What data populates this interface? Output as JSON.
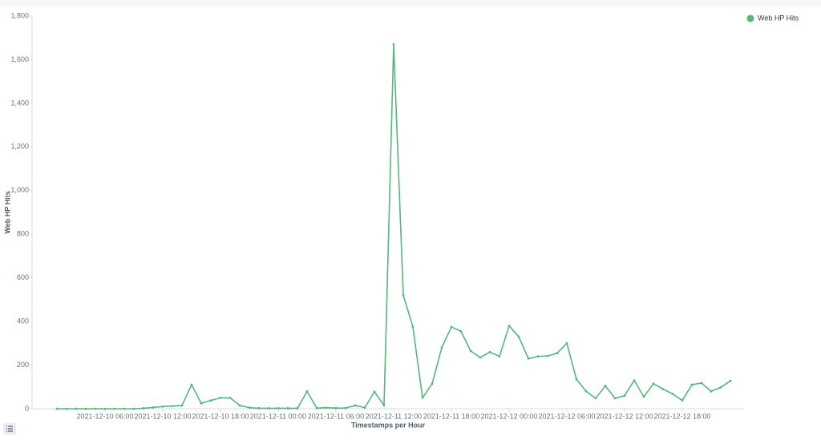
{
  "chart_data": {
    "type": "line",
    "x_label": "Timestamps per Hour",
    "y_label": "Web HP Hits",
    "x": [
      "2021-12-10 01:00",
      "2021-12-10 02:00",
      "2021-12-10 03:00",
      "2021-12-10 04:00",
      "2021-12-10 05:00",
      "2021-12-10 06:00",
      "2021-12-10 07:00",
      "2021-12-10 08:00",
      "2021-12-10 09:00",
      "2021-12-10 10:00",
      "2021-12-10 11:00",
      "2021-12-10 12:00",
      "2021-12-10 13:00",
      "2021-12-10 14:00",
      "2021-12-10 15:00",
      "2021-12-10 16:00",
      "2021-12-10 17:00",
      "2021-12-10 18:00",
      "2021-12-10 19:00",
      "2021-12-10 20:00",
      "2021-12-10 21:00",
      "2021-12-10 22:00",
      "2021-12-10 23:00",
      "2021-12-11 00:00",
      "2021-12-11 01:00",
      "2021-12-11 02:00",
      "2021-12-11 03:00",
      "2021-12-11 04:00",
      "2021-12-11 05:00",
      "2021-12-11 06:00",
      "2021-12-11 07:00",
      "2021-12-11 08:00",
      "2021-12-11 09:00",
      "2021-12-11 10:00",
      "2021-12-11 11:00",
      "2021-12-11 12:00",
      "2021-12-11 13:00",
      "2021-12-11 14:00",
      "2021-12-11 15:00",
      "2021-12-11 16:00",
      "2021-12-11 17:00",
      "2021-12-11 18:00",
      "2021-12-11 19:00",
      "2021-12-11 20:00",
      "2021-12-11 21:00",
      "2021-12-11 22:00",
      "2021-12-11 23:00",
      "2021-12-12 00:00",
      "2021-12-12 01:00",
      "2021-12-12 02:00",
      "2021-12-12 03:00",
      "2021-12-12 04:00",
      "2021-12-12 05:00",
      "2021-12-12 06:00",
      "2021-12-12 07:00",
      "2021-12-12 08:00",
      "2021-12-12 09:00",
      "2021-12-12 10:00",
      "2021-12-12 11:00",
      "2021-12-12 12:00",
      "2021-12-12 13:00",
      "2021-12-12 14:00",
      "2021-12-12 15:00",
      "2021-12-12 16:00",
      "2021-12-12 17:00",
      "2021-12-12 18:00",
      "2021-12-12 19:00",
      "2021-12-12 20:00",
      "2021-12-12 21:00",
      "2021-12-12 22:00",
      "2021-12-12 23:00"
    ],
    "series": [
      {
        "name": "Web HP Hits",
        "color": "#54b87a",
        "values": [
          0,
          0,
          0,
          0,
          0,
          0,
          0,
          0,
          0,
          2,
          6,
          10,
          12,
          15,
          110,
          25,
          38,
          50,
          50,
          15,
          5,
          2,
          2,
          2,
          2,
          2,
          80,
          3,
          5,
          3,
          3,
          15,
          5,
          78,
          15,
          1670,
          520,
          375,
          50,
          115,
          280,
          375,
          355,
          265,
          235,
          260,
          240,
          380,
          330,
          230,
          240,
          242,
          255,
          300,
          135,
          80,
          48,
          105,
          48,
          60,
          130,
          55,
          115,
          90,
          68,
          38,
          110,
          118,
          80,
          98,
          128
        ]
      }
    ],
    "ylim": [
      0,
      1800
    ],
    "yticks": [
      0,
      200,
      400,
      600,
      800,
      {
        "value": 1000,
        "label": "1,000"
      },
      {
        "value": 1200,
        "label": "1,200"
      },
      {
        "value": 1400,
        "label": "1,400"
      },
      {
        "value": 1600,
        "label": "1,600"
      },
      {
        "value": 1800,
        "label": "1,800"
      }
    ],
    "xticks": [
      "2021-12-10 06:00",
      "2021-12-10 12:00",
      "2021-12-10 18:00",
      "2021-12-11 00:00",
      "2021-12-11 06:00",
      "2021-12-11 12:00",
      "2021-12-11 18:00",
      "2021-12-12 00:00",
      "2021-12-12 06:00",
      "2021-12-12 12:00",
      "2021-12-12 18:00"
    ],
    "legend": "top-right",
    "grid": false
  }
}
